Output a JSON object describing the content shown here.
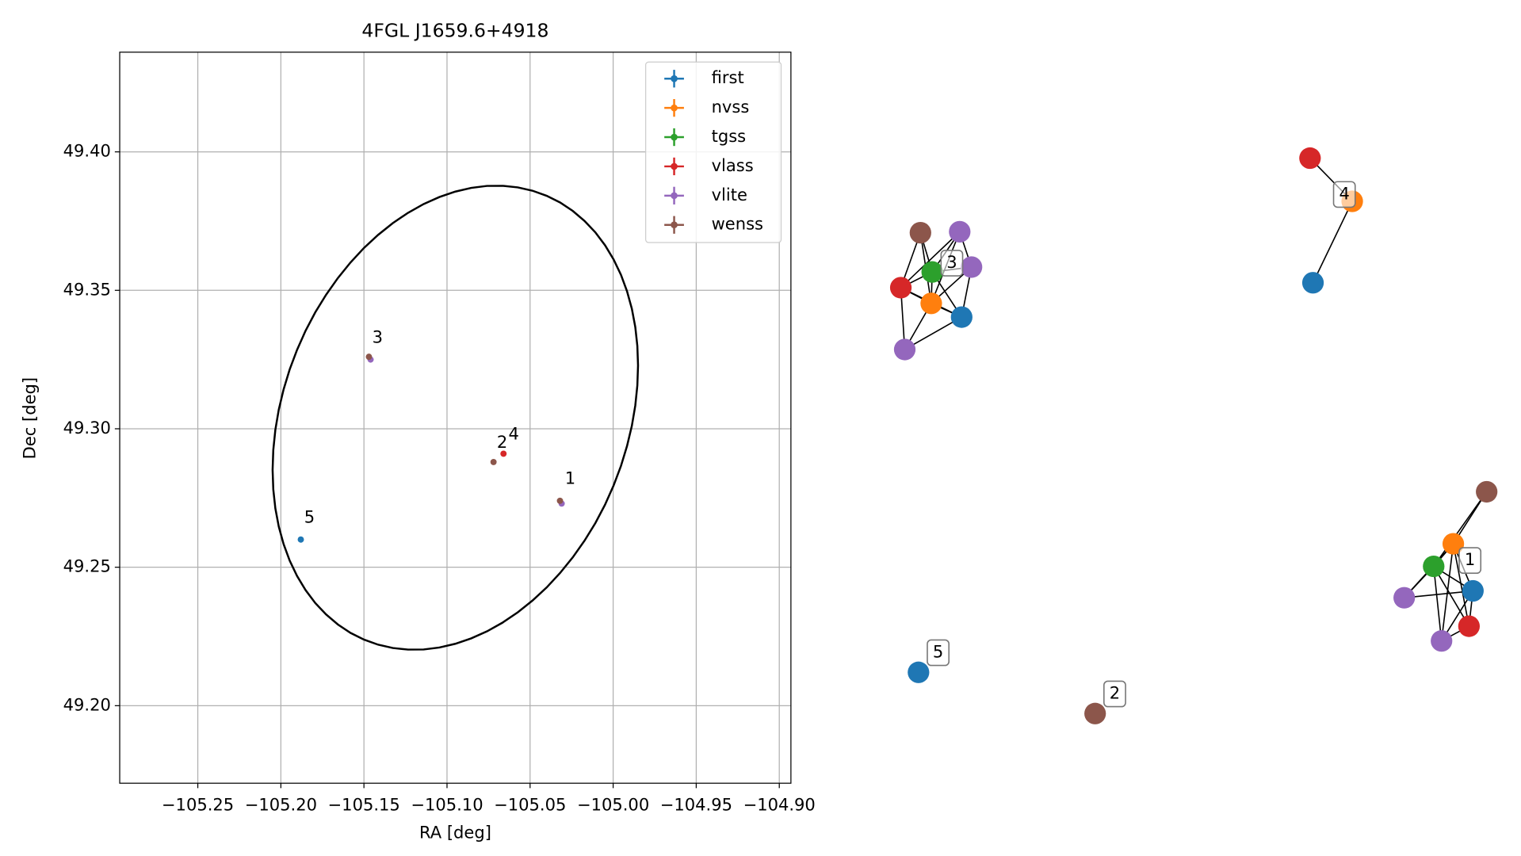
{
  "chart_data": {
    "type": "scatter",
    "title": "4FGL J1659.6+4918",
    "x_label": "RA [deg]",
    "y_label": "Dec [deg]",
    "xlim": [
      -105.297,
      -104.893
    ],
    "ylim": [
      49.172,
      49.436
    ],
    "xticks": [
      {
        "value": -105.25,
        "label": "−105.25"
      },
      {
        "value": -105.2,
        "label": "−105.20"
      },
      {
        "value": -105.15,
        "label": "−105.15"
      },
      {
        "value": -105.1,
        "label": "−105.10"
      },
      {
        "value": -105.05,
        "label": "−105.05"
      },
      {
        "value": -105.0,
        "label": "−105.00"
      },
      {
        "value": -104.95,
        "label": "−104.95"
      },
      {
        "value": -104.9,
        "label": "−104.90"
      }
    ],
    "yticks": [
      {
        "value": 49.2,
        "label": "49.20"
      },
      {
        "value": 49.25,
        "label": "49.25"
      },
      {
        "value": 49.3,
        "label": "49.30"
      },
      {
        "value": 49.35,
        "label": "49.35"
      },
      {
        "value": 49.4,
        "label": "49.40"
      }
    ],
    "grid": true,
    "legend": "upper right",
    "series": [
      {
        "name": "first",
        "color": "#1f77b4",
        "x": [
          -105.188
        ],
        "y": [
          49.26
        ]
      },
      {
        "name": "nvss",
        "color": "#ff7f0e",
        "x": [],
        "y": []
      },
      {
        "name": "tgss",
        "color": "#2ca02c",
        "x": [],
        "y": []
      },
      {
        "name": "vlass",
        "color": "#d62728",
        "x": [
          -105.066
        ],
        "y": [
          49.291
        ]
      },
      {
        "name": "vlite",
        "color": "#9467bd",
        "x": [
          -105.146,
          -105.031
        ],
        "y": [
          49.325,
          49.273
        ]
      },
      {
        "name": "wenss",
        "color": "#8c564b",
        "x": [
          -105.147,
          -105.072,
          -105.032
        ],
        "y": [
          49.326,
          49.288,
          49.274
        ]
      }
    ],
    "ellipse": {
      "center": [
        -105.095,
        49.304
      ],
      "ra_radius": 0.11,
      "dec_radius": 0.0838,
      "phase_deg": 77
    },
    "annotations": [
      {
        "text": "1",
        "x": -105.029,
        "y": 49.279
      },
      {
        "text": "2",
        "x": -105.07,
        "y": 49.292
      },
      {
        "text": "3",
        "x": -105.145,
        "y": 49.33
      },
      {
        "text": "4",
        "x": -105.063,
        "y": 49.295
      },
      {
        "text": "5",
        "x": -105.186,
        "y": 49.265
      }
    ]
  },
  "graph": {
    "groups": [
      {
        "label": "1",
        "catalogs": [
          "wenss",
          "nvss",
          "tgss",
          "first",
          "vlite",
          "vlass",
          "vlite"
        ]
      },
      {
        "label": "2",
        "catalogs": [
          "wenss"
        ]
      },
      {
        "label": "3",
        "catalogs": [
          "wenss",
          "vlite",
          "vlite",
          "tgss",
          "vlass",
          "nvss",
          "first",
          "vlite"
        ]
      },
      {
        "label": "4",
        "catalogs": [
          "vlass",
          "nvss",
          "first"
        ]
      },
      {
        "label": "5",
        "catalogs": [
          "first"
        ]
      }
    ]
  }
}
